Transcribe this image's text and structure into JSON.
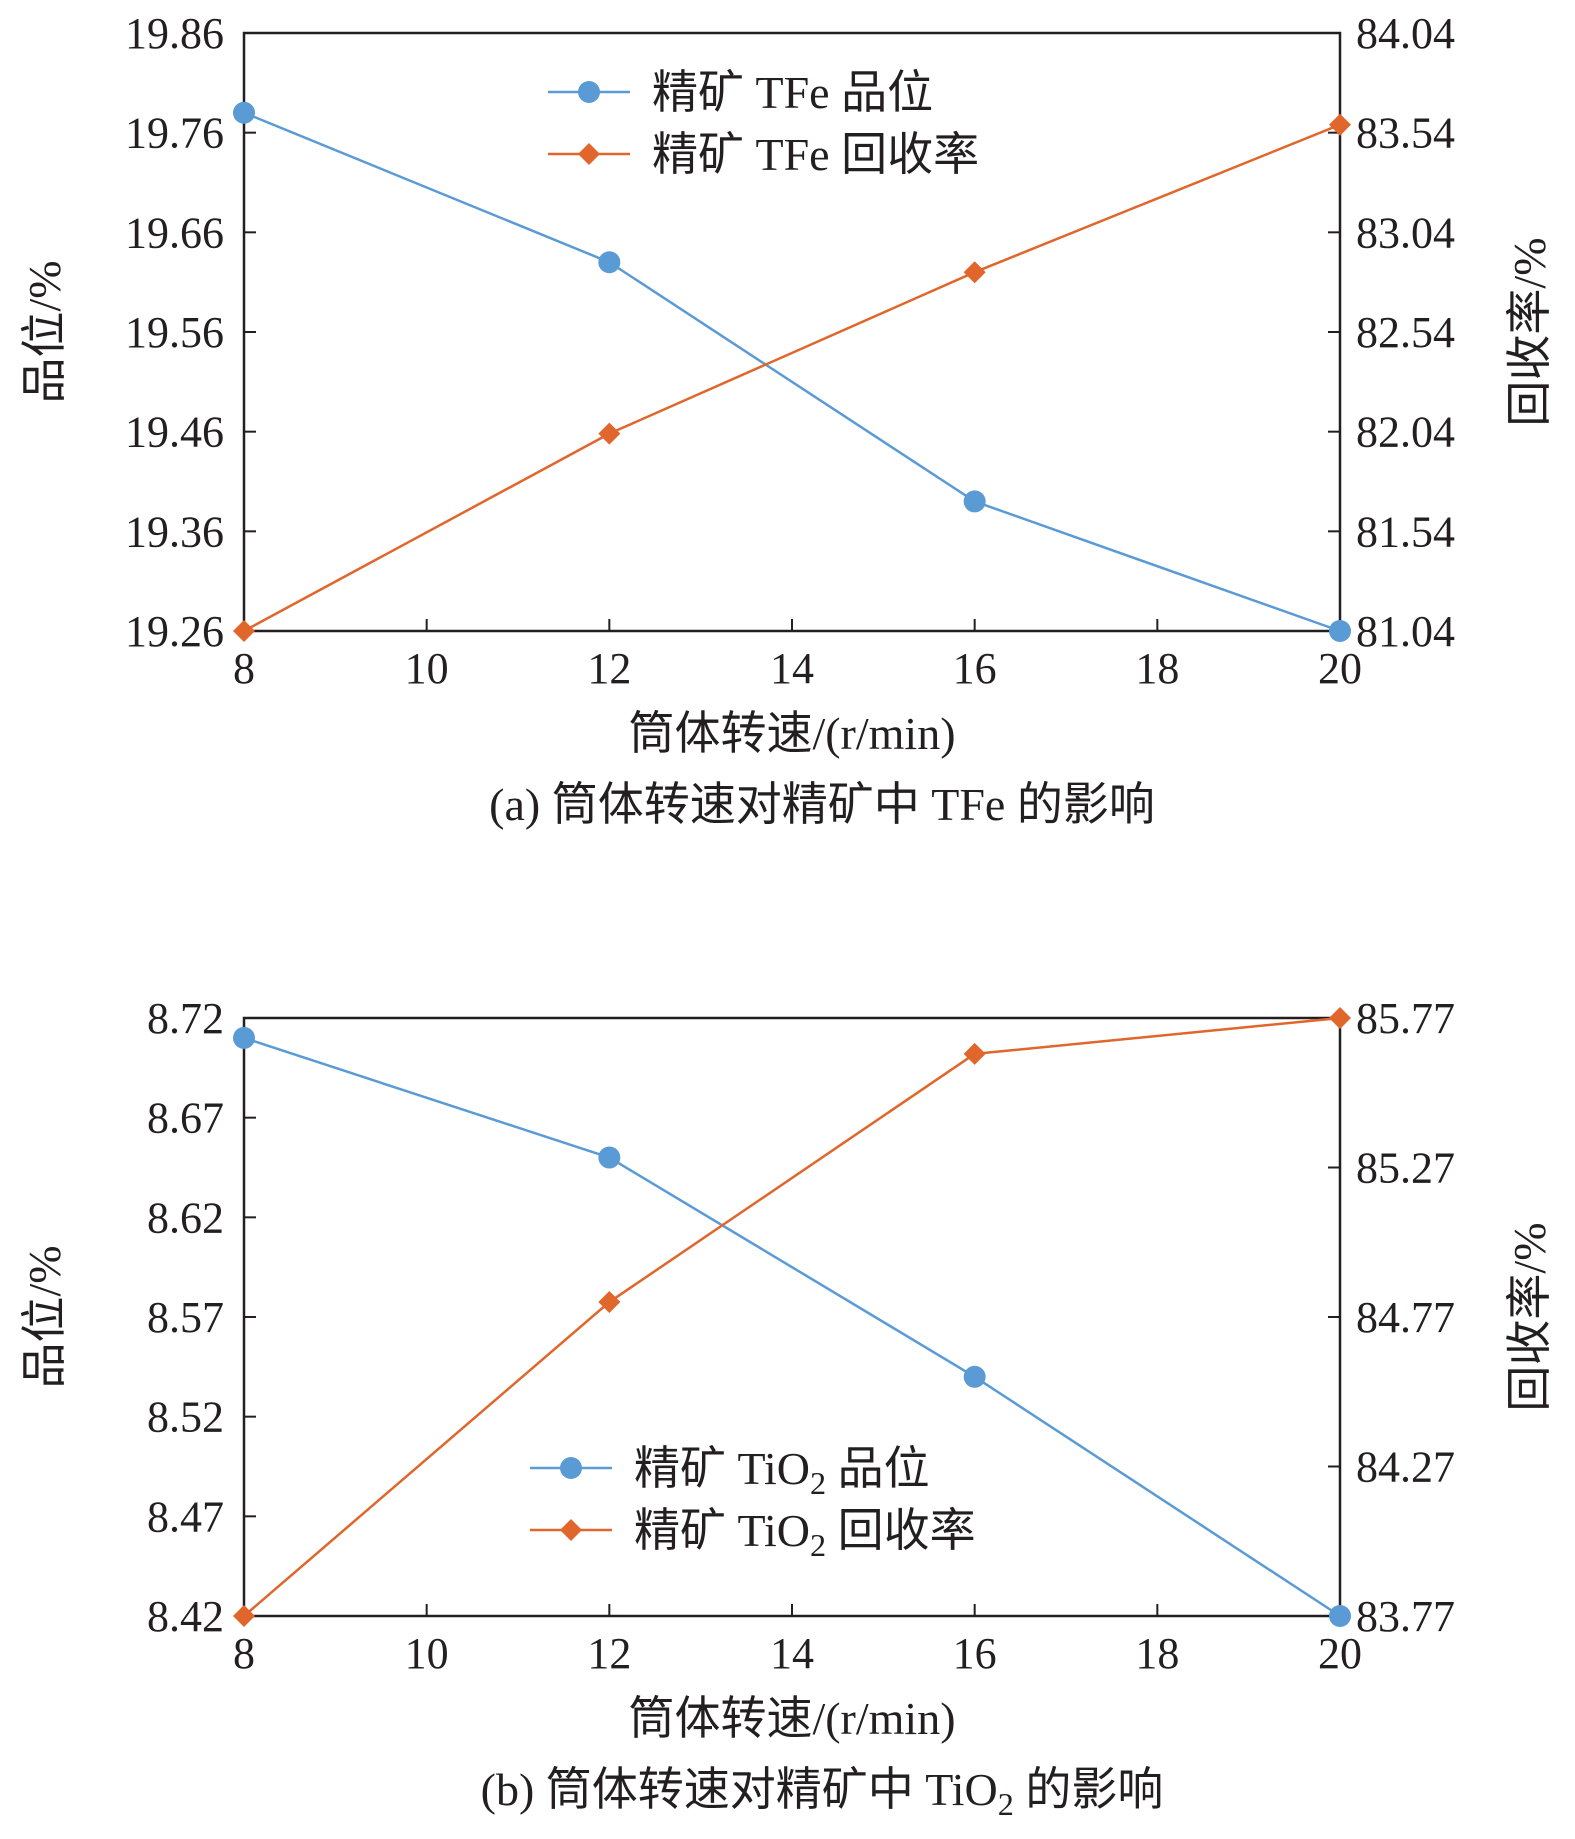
{
  "colors": {
    "grade": "#5b9bd5",
    "recovery": "#e0662b",
    "axis": "#231f20"
  },
  "chart_data": [
    {
      "id": "a",
      "type": "line",
      "caption": "(a) 筒体转速对精矿中 TFe 的影响",
      "xlabel": "筒体转速/(r/min)",
      "ylabel": "品位/%",
      "ylabel_right": "回收率/%",
      "x_ticks": [
        8,
        10,
        12,
        14,
        16,
        18,
        20
      ],
      "xlim": [
        8,
        20
      ],
      "ylim": [
        19.26,
        19.86
      ],
      "y_ticks": [
        "19.26",
        "19.36",
        "19.46",
        "19.56",
        "19.66",
        "19.76",
        "19.86"
      ],
      "y2lim": [
        81.04,
        84.04
      ],
      "y2_ticks": [
        "81.04",
        "81.54",
        "82.04",
        "82.54",
        "83.04",
        "83.54",
        "84.04"
      ],
      "grid": false,
      "legend_position": "top-center",
      "x": [
        8,
        12,
        16,
        20
      ],
      "series": [
        {
          "name": "精矿 TFe 品位",
          "axis": "left",
          "marker": "circle",
          "values": [
            19.78,
            19.63,
            19.39,
            19.26
          ]
        },
        {
          "name": "精矿 TFe 回收率",
          "axis": "right",
          "marker": "diamond",
          "values": [
            81.04,
            82.03,
            82.84,
            83.58
          ]
        }
      ]
    },
    {
      "id": "b",
      "type": "line",
      "caption": "(b) 筒体转速对精矿中 TiO2 的影响",
      "xlabel": "筒体转速/(r/min)",
      "ylabel": "品位/%",
      "ylabel_right": "回收率/%",
      "x_ticks": [
        8,
        10,
        12,
        14,
        16,
        18,
        20
      ],
      "xlim": [
        8,
        20
      ],
      "ylim": [
        8.42,
        8.72
      ],
      "y_ticks": [
        "8.42",
        "8.47",
        "8.52",
        "8.57",
        "8.62",
        "8.67",
        "8.72"
      ],
      "y2lim": [
        83.77,
        85.77
      ],
      "y2_ticks": [
        "83.77",
        "84.27",
        "84.77",
        "85.27",
        "85.77"
      ],
      "grid": false,
      "legend_position": "bottom-center",
      "x": [
        8,
        12,
        16,
        20
      ],
      "series": [
        {
          "name": "精矿 TiO2 品位",
          "axis": "left",
          "marker": "circle",
          "values": [
            8.71,
            8.65,
            8.54,
            8.42
          ]
        },
        {
          "name": "精矿 TiO2 回收率",
          "axis": "right",
          "marker": "diamond",
          "values": [
            83.77,
            84.82,
            85.65,
            85.77
          ]
        }
      ]
    }
  ]
}
